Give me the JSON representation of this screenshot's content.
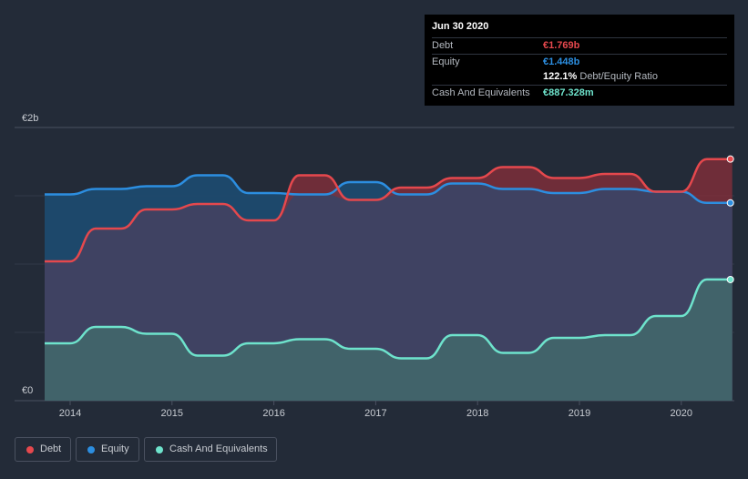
{
  "chart_data": {
    "type": "area",
    "title": "",
    "xlabel": "",
    "ylabel": "",
    "x_ticks": [
      "2014",
      "2015",
      "2016",
      "2017",
      "2018",
      "2019",
      "2020"
    ],
    "y_labels": [
      "€2b",
      "€0"
    ],
    "ylim": [
      0,
      2.0
    ],
    "xlim": [
      2013.75,
      2020.5
    ],
    "grid": true,
    "legend_position": "bottom-left",
    "series": [
      {
        "name": "Debt",
        "color": "#e5484d",
        "x": [
          2013.75,
          2014.0,
          2014.25,
          2014.5,
          2014.75,
          2015.0,
          2015.25,
          2015.5,
          2015.75,
          2016.0,
          2016.25,
          2016.5,
          2016.75,
          2017.0,
          2017.25,
          2017.5,
          2017.75,
          2018.0,
          2018.25,
          2018.5,
          2018.75,
          2019.0,
          2019.25,
          2019.5,
          2019.75,
          2020.0,
          2020.25,
          2020.5
        ],
        "values": [
          1.02,
          1.02,
          1.26,
          1.26,
          1.4,
          1.4,
          1.44,
          1.44,
          1.32,
          1.32,
          1.65,
          1.65,
          1.47,
          1.47,
          1.56,
          1.56,
          1.63,
          1.63,
          1.71,
          1.71,
          1.63,
          1.63,
          1.66,
          1.66,
          1.53,
          1.53,
          1.769,
          1.769
        ]
      },
      {
        "name": "Equity",
        "color": "#2c8ee0",
        "x": [
          2013.75,
          2014.0,
          2014.25,
          2014.5,
          2014.75,
          2015.0,
          2015.25,
          2015.5,
          2015.75,
          2016.0,
          2016.25,
          2016.5,
          2016.75,
          2017.0,
          2017.25,
          2017.5,
          2017.75,
          2018.0,
          2018.25,
          2018.5,
          2018.75,
          2019.0,
          2019.25,
          2019.5,
          2019.75,
          2020.0,
          2020.25,
          2020.5
        ],
        "values": [
          1.51,
          1.51,
          1.55,
          1.55,
          1.57,
          1.57,
          1.65,
          1.65,
          1.52,
          1.52,
          1.51,
          1.51,
          1.6,
          1.6,
          1.51,
          1.51,
          1.59,
          1.59,
          1.55,
          1.55,
          1.52,
          1.52,
          1.55,
          1.55,
          1.53,
          1.53,
          1.448,
          1.448
        ]
      },
      {
        "name": "Cash And Equivalents",
        "color": "#6ee3cc",
        "x": [
          2013.75,
          2014.0,
          2014.25,
          2014.5,
          2014.75,
          2015.0,
          2015.25,
          2015.5,
          2015.75,
          2016.0,
          2016.25,
          2016.5,
          2016.75,
          2017.0,
          2017.25,
          2017.5,
          2017.75,
          2018.0,
          2018.25,
          2018.5,
          2018.75,
          2019.0,
          2019.25,
          2019.5,
          2019.75,
          2020.0,
          2020.25,
          2020.5
        ],
        "values": [
          0.42,
          0.42,
          0.54,
          0.54,
          0.49,
          0.49,
          0.33,
          0.33,
          0.42,
          0.42,
          0.45,
          0.45,
          0.38,
          0.38,
          0.31,
          0.31,
          0.48,
          0.48,
          0.35,
          0.35,
          0.46,
          0.46,
          0.48,
          0.48,
          0.62,
          0.62,
          0.887,
          0.887
        ]
      }
    ]
  },
  "tooltip": {
    "date": "Jun 30 2020",
    "debt_label": "Debt",
    "debt_value": "€1.769b",
    "equity_label": "Equity",
    "equity_value": "€1.448b",
    "ratio_value": "122.1%",
    "ratio_label": "Debt/Equity Ratio",
    "cash_label": "Cash And Equivalents",
    "cash_value": "€887.328m"
  },
  "legend": {
    "debt": "Debt",
    "equity": "Equity",
    "cash": "Cash And Equivalents"
  },
  "colors": {
    "debt": "#e5484d",
    "equity": "#2c8ee0",
    "cash": "#6ee3cc",
    "background": "#232b38"
  }
}
